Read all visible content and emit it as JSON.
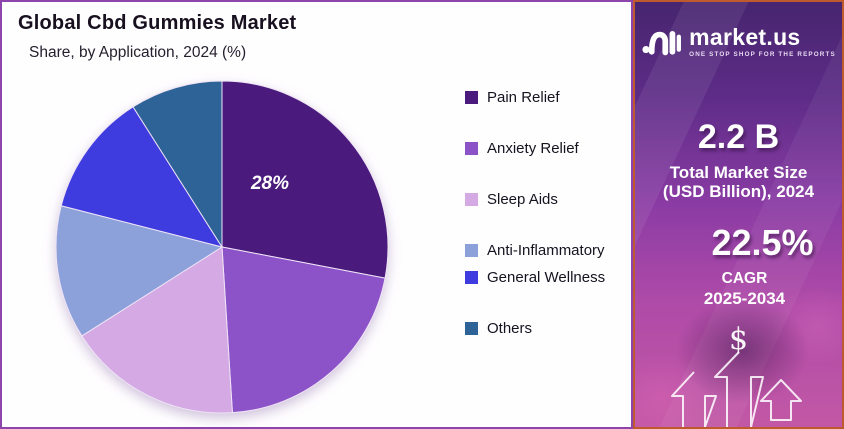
{
  "title": "Global Cbd Gummies Market",
  "subtitle": "Share, by Application, 2024 (%)",
  "chart_data": {
    "type": "pie",
    "title": "Global Cbd Gummies Market",
    "subtitle": "Share, by Application, 2024 (%)",
    "unit": "%",
    "start_angle_deg": 0,
    "direction": "clockwise",
    "labels": [
      "Pain Relief",
      "Anxiety Relief",
      "Sleep Aids",
      "Anti-Inflammatory",
      "General Wellness",
      "Others"
    ],
    "values": [
      28,
      21,
      17,
      13,
      12,
      9
    ],
    "colors": [
      "#4A1A7D",
      "#8C52C8",
      "#D4A9E4",
      "#8CA0DA",
      "#3E3BDF",
      "#2E6397"
    ],
    "data_labels": [
      "28%",
      "",
      "",
      "",
      "",
      ""
    ],
    "legend_position": "right",
    "note": "only the Pain Relief slice is labeled (28%); remaining values estimated from slice angles"
  },
  "panel": {
    "logo": {
      "brand": "market.us",
      "tagline": "ONE STOP SHOP FOR THE REPORTS",
      "mark_icon": "market-us-squiggle-icon"
    },
    "stat1": {
      "value": "2.2 B",
      "label_line1": "Total Market Size",
      "label_line2": "(USD Billion), 2024"
    },
    "stat2": {
      "value": "22.5%",
      "label_line1": "CAGR",
      "label_line2": "2025-2034"
    },
    "dollar_symbol": "$",
    "colors": {
      "border": "#BE5A2D",
      "gradient_top": "#47256F",
      "gradient_bottom": "#C258A5"
    }
  },
  "colors": {
    "chart_border": "#8E44AD",
    "slice_label_color": "#FFFFFF",
    "title_color": "#18101F"
  }
}
